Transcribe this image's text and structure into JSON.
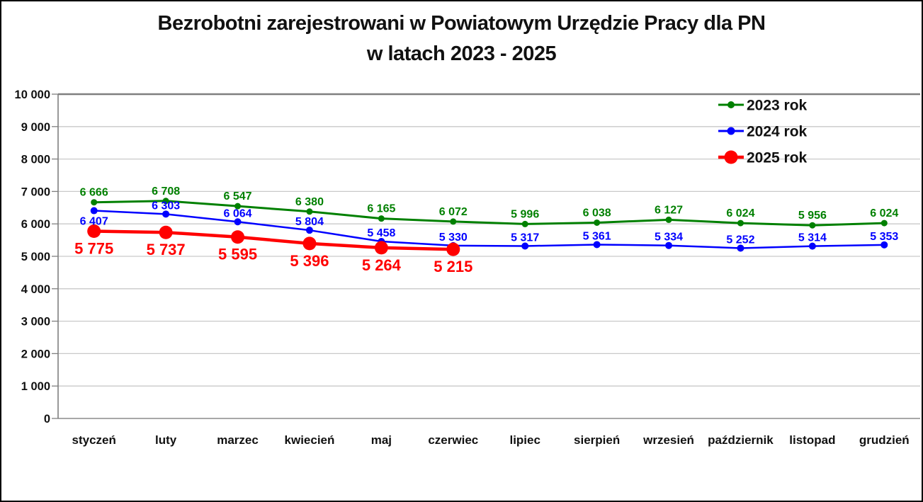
{
  "window": {
    "background": "#ffffff",
    "frame_border_color": "#000000"
  },
  "title": {
    "line1": "Bezrobotni zarejestrowani w Powiatowym Urzędzie Pracy dla PN",
    "line2": "w latach 2023 - 2025"
  },
  "chart_data": {
    "type": "line",
    "title": "Bezrobotni zarejestrowani w Powiatowym Urzędzie Pracy dla PN w latach 2023 - 2025",
    "categories": [
      "styczeń",
      "luty",
      "marzec",
      "kwiecień",
      "maj",
      "czerwiec",
      "lipiec",
      "sierpień",
      "wrzesień",
      "październik",
      "listopad",
      "grudzień"
    ],
    "series": [
      {
        "name": "2023 rok",
        "color": "#008000",
        "values": [
          6666,
          6708,
          6547,
          6380,
          6165,
          6072,
          5996,
          6038,
          6127,
          6024,
          5956,
          6024
        ],
        "label_position": "above"
      },
      {
        "name": "2024 rok",
        "color": "#0000ff",
        "values": [
          6407,
          6303,
          6064,
          5804,
          5458,
          5330,
          5317,
          5361,
          5334,
          5252,
          5314,
          5353
        ],
        "label_position": "above",
        "label_position_overrides": {
          "0": "below"
        }
      },
      {
        "name": "2025 rok",
        "color": "#ff0000",
        "values": [
          5775,
          5737,
          5595,
          5396,
          5264,
          5215
        ],
        "label_position": "below"
      }
    ],
    "ylim": [
      0,
      10000
    ],
    "ytick_step": 1000,
    "ytick_labels": [
      "0",
      "1 000",
      "2 000",
      "3 000",
      "4 000",
      "5 000",
      "6 000",
      "7 000",
      "8 000",
      "9 000",
      "10 000"
    ],
    "grid": true,
    "gridline_color": "#c9c9c9",
    "axis_color": "#7f7f7f",
    "legend": {
      "position": "top-right",
      "entries": [
        "2023 rok",
        "2024 rok",
        "2025 rok"
      ]
    }
  }
}
